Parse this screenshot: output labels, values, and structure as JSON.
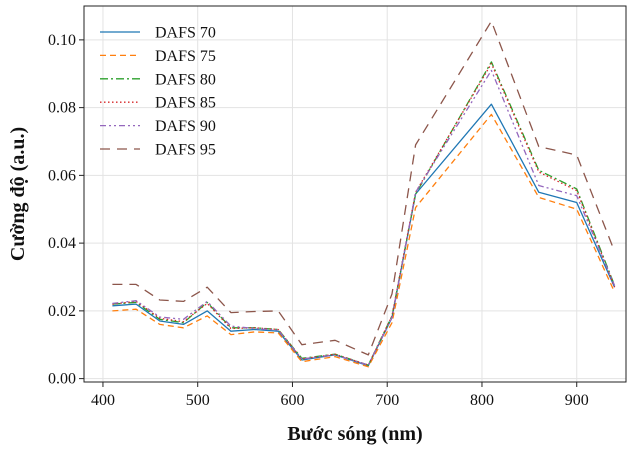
{
  "chart_data": {
    "type": "line",
    "title": "",
    "xlabel": "Bước sóng (nm)",
    "ylabel": "Cường độ (a.u.)",
    "xlim": [
      380,
      952
    ],
    "ylim": [
      -0.001,
      0.11
    ],
    "xticks": [
      400,
      500,
      600,
      700,
      800,
      900
    ],
    "yticks": [
      0.0,
      0.02,
      0.04,
      0.06,
      0.08,
      0.1
    ],
    "ytick_labels": [
      "0.00",
      "0.02",
      "0.04",
      "0.06",
      "0.08",
      "0.10"
    ],
    "grid": true,
    "legend_position": "top-left",
    "x": [
      410,
      435,
      460,
      485,
      510,
      535,
      560,
      585,
      610,
      645,
      680,
      705,
      730,
      810,
      860,
      900,
      940
    ],
    "series": [
      {
        "name": "DAFS 70",
        "color": "#1f77b4",
        "dash": "solid",
        "values": [
          0.0215,
          0.022,
          0.017,
          0.016,
          0.02,
          0.014,
          0.0145,
          0.014,
          0.0055,
          0.007,
          0.0038,
          0.018,
          0.0545,
          0.081,
          0.055,
          0.052,
          0.027
        ]
      },
      {
        "name": "DAFS 75",
        "color": "#ff7f0e",
        "dash": "dashed",
        "values": [
          0.02,
          0.0205,
          0.016,
          0.015,
          0.0185,
          0.013,
          0.0138,
          0.0135,
          0.005,
          0.0065,
          0.0035,
          0.0165,
          0.0505,
          0.078,
          0.0535,
          0.05,
          0.0255
        ]
      },
      {
        "name": "DAFS 80",
        "color": "#2ca02c",
        "dash": "dashdot",
        "values": [
          0.022,
          0.0225,
          0.0175,
          0.0165,
          0.0225,
          0.015,
          0.015,
          0.0145,
          0.006,
          0.0072,
          0.004,
          0.0185,
          0.0545,
          0.0935,
          0.0615,
          0.056,
          0.0275
        ]
      },
      {
        "name": "DAFS 85",
        "color": "#d62728",
        "dash": "dotted",
        "values": [
          0.022,
          0.0228,
          0.0178,
          0.0168,
          0.0222,
          0.0148,
          0.015,
          0.0145,
          0.0058,
          0.0072,
          0.004,
          0.0185,
          0.055,
          0.093,
          0.061,
          0.0555,
          0.027
        ]
      },
      {
        "name": "DAFS 90",
        "color": "#9467bd",
        "dash": "dashdotdot",
        "values": [
          0.0222,
          0.023,
          0.0182,
          0.0175,
          0.0228,
          0.0155,
          0.0148,
          0.0143,
          0.0058,
          0.007,
          0.004,
          0.018,
          0.055,
          0.091,
          0.057,
          0.054,
          0.0275
        ]
      },
      {
        "name": "DAFS 95",
        "color": "#8c564b",
        "dash": "longdash",
        "values": [
          0.0278,
          0.0278,
          0.0232,
          0.0228,
          0.027,
          0.0195,
          0.0198,
          0.02,
          0.01,
          0.0113,
          0.007,
          0.025,
          0.069,
          0.1055,
          0.0685,
          0.066,
          0.0375
        ]
      }
    ]
  }
}
